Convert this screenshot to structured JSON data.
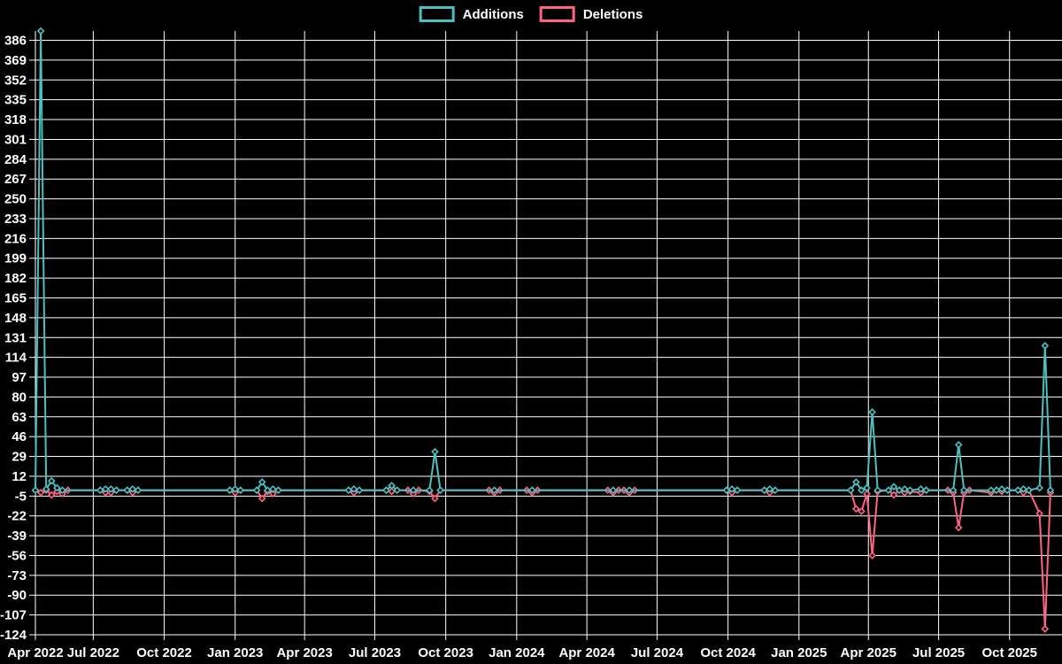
{
  "legend": {
    "additions_label": "Additions",
    "deletions_label": "Deletions"
  },
  "colors": {
    "additions": "#4bc0c0",
    "deletions": "#ff6384",
    "grid": "#ffffff",
    "text": "#ffffff",
    "background": "#000000"
  },
  "chart_data": {
    "type": "line",
    "title": "",
    "xlabel": "",
    "ylabel": "",
    "grid": true,
    "legend_position": "top",
    "legend": [
      "Additions",
      "Deletions"
    ],
    "x_axis": {
      "start": "2022-04-17",
      "end": "2025-12-08",
      "ticks": [
        {
          "label": "Apr 2022",
          "date": "2022-04-01"
        },
        {
          "label": "Jul 2022",
          "date": "2022-07-01"
        },
        {
          "label": "Oct 2022",
          "date": "2022-10-01"
        },
        {
          "label": "Jan 2023",
          "date": "2023-01-01"
        },
        {
          "label": "Apr 2023",
          "date": "2023-04-01"
        },
        {
          "label": "Jul 2023",
          "date": "2023-07-01"
        },
        {
          "label": "Oct 2023",
          "date": "2023-10-01"
        },
        {
          "label": "Jan 2024",
          "date": "2024-01-01"
        },
        {
          "label": "Apr 2024",
          "date": "2024-04-01"
        },
        {
          "label": "Jul 2024",
          "date": "2024-07-01"
        },
        {
          "label": "Oct 2024",
          "date": "2024-10-01"
        },
        {
          "label": "Jan 2025",
          "date": "2025-01-01"
        },
        {
          "label": "Apr 2025",
          "date": "2025-04-01"
        },
        {
          "label": "Jul 2025",
          "date": "2025-07-01"
        },
        {
          "label": "Oct 2025",
          "date": "2025-10-01"
        }
      ]
    },
    "y_axis": {
      "min": -124,
      "max": 394,
      "tick_step": 17,
      "ticks": [
        386,
        369,
        352,
        335,
        318,
        301,
        284,
        267,
        250,
        233,
        216,
        199,
        182,
        165,
        148,
        131,
        114,
        97,
        80,
        63,
        46,
        29,
        12,
        -5,
        -22,
        -39,
        -56,
        -73,
        -90,
        -107,
        -124
      ]
    },
    "series": [
      {
        "name": "Additions",
        "color": "#4bc0c0",
        "points": [
          [
            "2022-04-17",
            0
          ],
          [
            "2022-04-24",
            394
          ],
          [
            "2022-05-01",
            1
          ],
          [
            "2022-05-08",
            8
          ],
          [
            "2022-05-15",
            2
          ],
          [
            "2022-05-22",
            0
          ],
          [
            "2022-07-10",
            0
          ],
          [
            "2022-07-17",
            1
          ],
          [
            "2022-07-24",
            1
          ],
          [
            "2022-07-31",
            0
          ],
          [
            "2022-08-14",
            0
          ],
          [
            "2022-08-21",
            1
          ],
          [
            "2022-08-28",
            0
          ],
          [
            "2022-12-25",
            0
          ],
          [
            "2023-01-01",
            1
          ],
          [
            "2023-01-08",
            0
          ],
          [
            "2023-01-29",
            0
          ],
          [
            "2023-02-05",
            7
          ],
          [
            "2023-02-12",
            0
          ],
          [
            "2023-02-19",
            1
          ],
          [
            "2023-02-26",
            0
          ],
          [
            "2023-05-28",
            0
          ],
          [
            "2023-06-04",
            1
          ],
          [
            "2023-06-11",
            0
          ],
          [
            "2023-07-16",
            0
          ],
          [
            "2023-07-23",
            4
          ],
          [
            "2023-07-30",
            0
          ],
          [
            "2023-08-20",
            0
          ],
          [
            "2023-09-10",
            0
          ],
          [
            "2023-09-17",
            33
          ],
          [
            "2023-09-24",
            0
          ],
          [
            "2023-12-03",
            0
          ],
          [
            "2024-01-21",
            0
          ],
          [
            "2024-05-05",
            0
          ],
          [
            "2024-05-26",
            0
          ],
          [
            "2024-09-29",
            0
          ],
          [
            "2024-10-06",
            1
          ],
          [
            "2024-10-13",
            0
          ],
          [
            "2024-11-17",
            0
          ],
          [
            "2024-11-24",
            1
          ],
          [
            "2024-12-01",
            0
          ],
          [
            "2025-03-09",
            0
          ],
          [
            "2025-03-16",
            7
          ],
          [
            "2025-03-23",
            0
          ],
          [
            "2025-03-30",
            2
          ],
          [
            "2025-04-06",
            67
          ],
          [
            "2025-04-13",
            0
          ],
          [
            "2025-04-27",
            0
          ],
          [
            "2025-05-04",
            3
          ],
          [
            "2025-05-11",
            0
          ],
          [
            "2025-05-18",
            1
          ],
          [
            "2025-05-25",
            0
          ],
          [
            "2025-06-08",
            1
          ],
          [
            "2025-06-15",
            0
          ],
          [
            "2025-07-20",
            0
          ],
          [
            "2025-07-27",
            39
          ],
          [
            "2025-08-03",
            0
          ],
          [
            "2025-09-07",
            0
          ],
          [
            "2025-09-14",
            0
          ],
          [
            "2025-09-21",
            1
          ],
          [
            "2025-09-28",
            0
          ],
          [
            "2025-10-12",
            0
          ],
          [
            "2025-10-19",
            1
          ],
          [
            "2025-10-26",
            0
          ],
          [
            "2025-11-09",
            2
          ],
          [
            "2025-11-16",
            124
          ],
          [
            "2025-11-23",
            0
          ]
        ]
      },
      {
        "name": "Deletions",
        "color": "#ff6384",
        "points": [
          [
            "2022-04-17",
            0
          ],
          [
            "2022-04-24",
            -2
          ],
          [
            "2022-05-01",
            0
          ],
          [
            "2022-05-08",
            -4
          ],
          [
            "2022-05-15",
            -1
          ],
          [
            "2022-05-22",
            -3
          ],
          [
            "2022-05-29",
            0
          ],
          [
            "2022-07-10",
            0
          ],
          [
            "2022-07-17",
            -2
          ],
          [
            "2022-07-24",
            -2
          ],
          [
            "2022-07-31",
            0
          ],
          [
            "2022-08-14",
            0
          ],
          [
            "2022-08-21",
            -2
          ],
          [
            "2022-08-28",
            0
          ],
          [
            "2022-12-25",
            0
          ],
          [
            "2023-01-01",
            -2
          ],
          [
            "2023-01-08",
            0
          ],
          [
            "2023-01-29",
            0
          ],
          [
            "2023-02-05",
            -7
          ],
          [
            "2023-02-12",
            -1
          ],
          [
            "2023-02-19",
            -3
          ],
          [
            "2023-02-26",
            0
          ],
          [
            "2023-05-28",
            0
          ],
          [
            "2023-06-04",
            -2
          ],
          [
            "2023-06-11",
            0
          ],
          [
            "2023-07-16",
            0
          ],
          [
            "2023-07-23",
            -1
          ],
          [
            "2023-07-30",
            0
          ],
          [
            "2023-08-13",
            0
          ],
          [
            "2023-08-20",
            -3
          ],
          [
            "2023-08-27",
            0
          ],
          [
            "2023-09-10",
            -1
          ],
          [
            "2023-09-17",
            -7
          ],
          [
            "2023-09-24",
            0
          ],
          [
            "2023-11-26",
            0
          ],
          [
            "2023-12-03",
            -2
          ],
          [
            "2023-12-10",
            0
          ],
          [
            "2024-01-14",
            0
          ],
          [
            "2024-01-21",
            -2
          ],
          [
            "2024-01-28",
            0
          ],
          [
            "2024-04-28",
            0
          ],
          [
            "2024-05-05",
            -2
          ],
          [
            "2024-05-12",
            0
          ],
          [
            "2024-05-19",
            0
          ],
          [
            "2024-05-26",
            -2
          ],
          [
            "2024-06-02",
            0
          ],
          [
            "2024-09-29",
            0
          ],
          [
            "2024-10-06",
            -2
          ],
          [
            "2024-10-13",
            0
          ],
          [
            "2024-11-17",
            0
          ],
          [
            "2024-11-24",
            -2
          ],
          [
            "2024-12-01",
            0
          ],
          [
            "2025-03-09",
            0
          ],
          [
            "2025-03-16",
            -16
          ],
          [
            "2025-03-23",
            -18
          ],
          [
            "2025-03-30",
            -3
          ],
          [
            "2025-04-06",
            -56
          ],
          [
            "2025-04-13",
            -1
          ],
          [
            "2025-04-27",
            0
          ],
          [
            "2025-05-04",
            -4
          ],
          [
            "2025-05-11",
            0
          ],
          [
            "2025-05-18",
            -2
          ],
          [
            "2025-05-25",
            -1
          ],
          [
            "2025-06-08",
            -2
          ],
          [
            "2025-06-15",
            0
          ],
          [
            "2025-07-13",
            0
          ],
          [
            "2025-07-20",
            -2
          ],
          [
            "2025-07-27",
            -32
          ],
          [
            "2025-08-03",
            -2
          ],
          [
            "2025-08-10",
            0
          ],
          [
            "2025-09-07",
            -2
          ],
          [
            "2025-09-14",
            0
          ],
          [
            "2025-09-21",
            -1
          ],
          [
            "2025-09-28",
            0
          ],
          [
            "2025-10-12",
            0
          ],
          [
            "2025-10-19",
            -2
          ],
          [
            "2025-10-26",
            0
          ],
          [
            "2025-11-09",
            -20
          ],
          [
            "2025-11-16",
            -119
          ],
          [
            "2025-11-23",
            -2
          ]
        ]
      }
    ]
  }
}
